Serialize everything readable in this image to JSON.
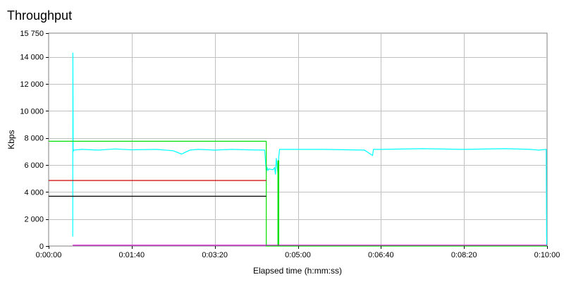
{
  "chart_data": {
    "type": "line",
    "title": "Throughput",
    "xlabel": "Elapsed time (h:mm:ss)",
    "ylabel": "Kbps",
    "xlim": [
      0,
      600
    ],
    "ylim": [
      0,
      15750
    ],
    "xticks": [
      0,
      100,
      200,
      300,
      400,
      500,
      600
    ],
    "xtick_labels": [
      "0:00:00",
      "0:01:40",
      "0:03:20",
      "0:05:00",
      "0:06:40",
      "0:08:20",
      "0:10:00"
    ],
    "yticks": [
      0,
      2000,
      4000,
      6000,
      8000,
      10000,
      12000,
      14000,
      15750
    ],
    "ytick_labels": [
      "0",
      "2 000",
      "4 000",
      "6 000",
      "8 000",
      "10 000",
      "12 000",
      "14 000",
      "15 750"
    ],
    "grid": true,
    "series": [
      {
        "color": "#00ffff",
        "x": [
          29,
          29.2,
          29.5,
          30,
          40,
          60,
          80,
          100,
          130,
          150,
          160,
          170,
          180,
          200,
          220,
          240,
          260,
          262,
          263,
          264,
          265,
          270,
          272,
          273,
          274,
          276,
          277,
          278,
          290,
          330,
          380,
          390,
          391,
          392,
          400,
          450,
          500,
          550,
          580,
          590,
          599,
          599.5,
          600
        ],
        "y": [
          700,
          14300,
          7000,
          7100,
          7150,
          7100,
          7180,
          7120,
          7150,
          7050,
          6800,
          7100,
          7150,
          7100,
          7150,
          7120,
          7100,
          5500,
          5800,
          5600,
          5700,
          5650,
          5800,
          5300,
          6500,
          5400,
          6600,
          7150,
          7150,
          7150,
          7100,
          6700,
          7150,
          7150,
          7150,
          7200,
          7150,
          7200,
          7150,
          7100,
          7150,
          0,
          0
        ]
      },
      {
        "color": "#00e000",
        "x": [
          0,
          262,
          262,
          276,
          276,
          277,
          277,
          600
        ],
        "y": [
          7750,
          7750,
          0,
          0,
          6300,
          6300,
          0,
          0
        ]
      },
      {
        "color": "#cc0000",
        "x": [
          0,
          262
        ],
        "y": [
          4850,
          4850
        ]
      },
      {
        "color": "#000000",
        "x": [
          0,
          262
        ],
        "y": [
          3680,
          3680
        ]
      },
      {
        "color": "#cc00cc",
        "x": [
          29,
          600
        ],
        "y": [
          60,
          60
        ]
      }
    ]
  }
}
